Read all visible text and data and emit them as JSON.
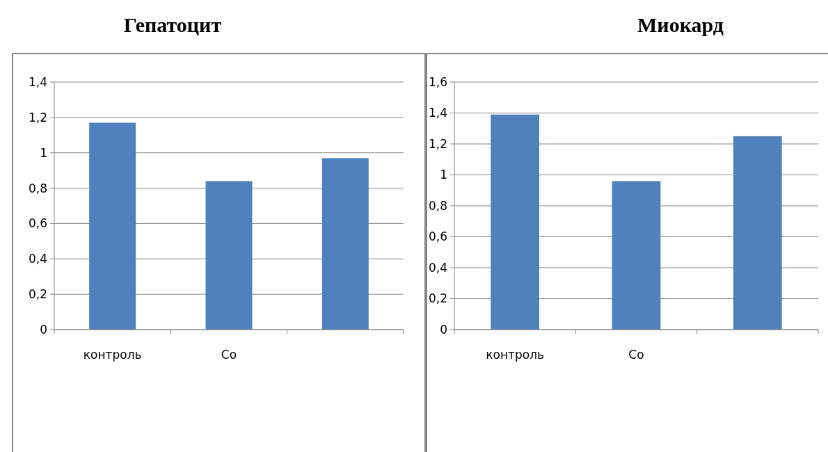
{
  "chart_data": [
    {
      "type": "bar",
      "title": "Гепатоцит",
      "categories": [
        "контроль",
        "Co",
        null
      ],
      "values": [
        1.17,
        0.84,
        0.97
      ],
      "color": "#4f81bd",
      "ylim": [
        0,
        1.4
      ],
      "yticks": [
        {
          "value": 0,
          "label": "0"
        },
        {
          "value": 0.2,
          "label": "0,2"
        },
        {
          "value": 0.4,
          "label": "0,4"
        },
        {
          "value": 0.6,
          "label": "0,6"
        },
        {
          "value": 0.8,
          "label": "0,8"
        },
        {
          "value": 1,
          "label": "1"
        },
        {
          "value": 1.2,
          "label": "1,2"
        },
        {
          "value": 1.4,
          "label": "1,4"
        }
      ],
      "grid": "y"
    },
    {
      "type": "bar",
      "title": "Миокард",
      "categories": [
        "контроль",
        "Co",
        null
      ],
      "values": [
        1.39,
        0.96,
        1.25
      ],
      "color": "#4f81bd",
      "ylim": [
        0,
        1.6
      ],
      "yticks": [
        {
          "value": 0,
          "label": "0"
        },
        {
          "value": 0.2,
          "label": "0,2"
        },
        {
          "value": 0.4,
          "label": "0,4"
        },
        {
          "value": 0.6,
          "label": "0,6"
        },
        {
          "value": 0.8,
          "label": "0,8"
        },
        {
          "value": 1,
          "label": "1"
        },
        {
          "value": 1.2,
          "label": "1,2"
        },
        {
          "value": 1.4,
          "label": "1,4"
        },
        {
          "value": 1.6,
          "label": "1,6"
        }
      ],
      "grid": "y"
    }
  ]
}
